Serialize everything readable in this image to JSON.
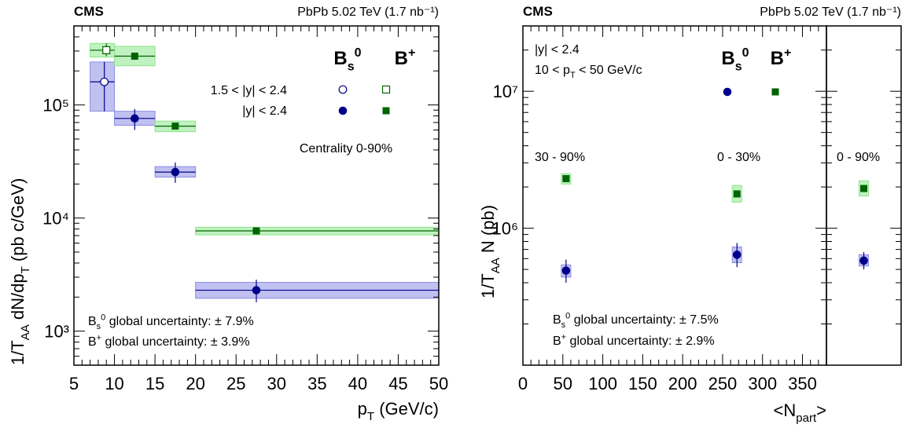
{
  "chart_data": [
    {
      "type": "scatter",
      "header_left": "CMS",
      "header_right": "PbPb 5.02 TeV (1.7 nb⁻¹)",
      "xlabel": "p_T (GeV/c)",
      "ylabel": "1/T_AA dN/dp_T (pb c/GeV)",
      "xlim": [
        5,
        50
      ],
      "ylim": [
        500,
        500000
      ],
      "yscale": "log",
      "xticks": [
        "5",
        "10",
        "15",
        "20",
        "25",
        "30",
        "35",
        "40",
        "45",
        "50"
      ],
      "yticks": [
        "10³",
        "10⁴",
        "10⁵"
      ],
      "column_headers": [
        "B_s^0",
        "B^+"
      ],
      "legend_rows": [
        "1.5 < |y| < 2.4",
        "|y| < 2.4"
      ],
      "annotation": "Centrality 0-90%",
      "global_uncertainties": [
        "B_s^0 global uncertainty: ± 7.9%",
        "B^+ global uncertainty: ± 3.9%"
      ],
      "series": [
        {
          "name": "B_s^0, 1.5 < |y| < 2.4",
          "color": "#00008b",
          "marker": "circle-open",
          "box": "#8c8ce6",
          "points": [
            {
              "x": 8.75,
              "xlo": 7,
              "xhi": 10,
              "y": 160000,
              "ylo": 88000,
              "yhi": 240000,
              "sylo": 88000,
              "syhi": 240000
            }
          ]
        },
        {
          "name": "B_s^0, |y| < 2.4",
          "color": "#00008b",
          "marker": "circle",
          "box": "#8c8ce6",
          "points": [
            {
              "x": 12.5,
              "xlo": 10,
              "xhi": 15,
              "y": 76000,
              "ylo": 60000,
              "yhi": 92000,
              "sylo": 66000,
              "syhi": 88000
            },
            {
              "x": 17.5,
              "xlo": 15,
              "xhi": 20,
              "y": 25500,
              "ylo": 20500,
              "yhi": 31000,
              "sylo": 23000,
              "syhi": 28500
            },
            {
              "x": 27.5,
              "xlo": 20,
              "xhi": 50,
              "y": 2300,
              "ylo": 1800,
              "yhi": 2850,
              "sylo": 1950,
              "syhi": 2700
            }
          ]
        },
        {
          "name": "B^+, 1.5 < |y| < 2.4",
          "color": "#006400",
          "marker": "square-open",
          "box": "#8ce68c",
          "points": [
            {
              "x": 9,
              "xlo": 7,
              "xhi": 10,
              "y": 305000,
              "ylo": 270000,
              "yhi": 350000,
              "sylo": 265000,
              "syhi": 350000
            }
          ]
        },
        {
          "name": "B^+, |y| < 2.4",
          "color": "#006400",
          "marker": "square",
          "box": "#8ce68c",
          "points": [
            {
              "x": 12.5,
              "xlo": 10,
              "xhi": 15,
              "y": 270000,
              "ylo": 255000,
              "yhi": 285000,
              "sylo": 222000,
              "syhi": 330000
            },
            {
              "x": 17.5,
              "xlo": 15,
              "xhi": 20,
              "y": 65000,
              "ylo": 62000,
              "yhi": 68000,
              "sylo": 58000,
              "syhi": 72000
            },
            {
              "x": 27.5,
              "xlo": 20,
              "xhi": 50,
              "y": 7700,
              "ylo": 7500,
              "yhi": 7900,
              "sylo": 7100,
              "syhi": 8300
            }
          ]
        }
      ]
    },
    {
      "type": "scatter",
      "header_left": "CMS",
      "header_right": "PbPb 5.02 TeV (1.7 nb⁻¹)",
      "xlabel": "<N_part>",
      "ylabel": "1/T_AA N (pb)",
      "xlim": [
        0,
        380
      ],
      "ylim": [
        100000,
        30000000
      ],
      "yscale": "log",
      "xticks": [
        "0",
        "50",
        "100",
        "150",
        "200",
        "250",
        "300",
        "350"
      ],
      "yticks": [
        "10⁶",
        "10⁷"
      ],
      "selection": [
        "|y| < 2.4",
        "10 < p_T < 50 GeV/c"
      ],
      "column_headers": [
        "B_s^0",
        "B^+"
      ],
      "centrality_labels": [
        "30 - 90%",
        "0 - 30%",
        "0 - 90%"
      ],
      "global_uncertainties": [
        "B_s^0 global uncertainty: ± 7.5%",
        "B^+ global uncertainty: ± 2.9%"
      ],
      "series": [
        {
          "name": "B_s^0",
          "color": "#00008b",
          "marker": "circle",
          "box": "#8c8ce6",
          "points": [
            {
              "x": 54,
              "y": 490000,
              "ylo": 400000,
              "yhi": 590000,
              "sylo": 440000,
              "syhi": 540000
            },
            {
              "x": 268,
              "y": 640000,
              "ylo": 520000,
              "yhi": 780000,
              "sylo": 560000,
              "syhi": 730000
            }
          ]
        },
        {
          "name": "B^+",
          "color": "#006400",
          "marker": "square",
          "box": "#8ce68c",
          "points": [
            {
              "x": 54,
              "y": 2300000,
              "ylo": 2200000,
              "yhi": 2400000,
              "sylo": 2100000,
              "syhi": 2500000
            },
            {
              "x": 268,
              "y": 1780000,
              "ylo": 1700000,
              "yhi": 1860000,
              "sylo": 1550000,
              "syhi": 2050000
            }
          ]
        }
      ],
      "integrated": {
        "label": "0 - 90%",
        "series": [
          {
            "name": "B_s^0",
            "color": "#00008b",
            "marker": "circle",
            "box": "#8c8ce6",
            "y": 580000,
            "ylo": 500000,
            "yhi": 670000,
            "sylo": 530000,
            "syhi": 640000
          },
          {
            "name": "B^+",
            "color": "#006400",
            "marker": "square",
            "box": "#8ce68c",
            "y": 1950000,
            "ylo": 1880000,
            "yhi": 2020000,
            "sylo": 1720000,
            "syhi": 2220000
          }
        ]
      }
    }
  ]
}
